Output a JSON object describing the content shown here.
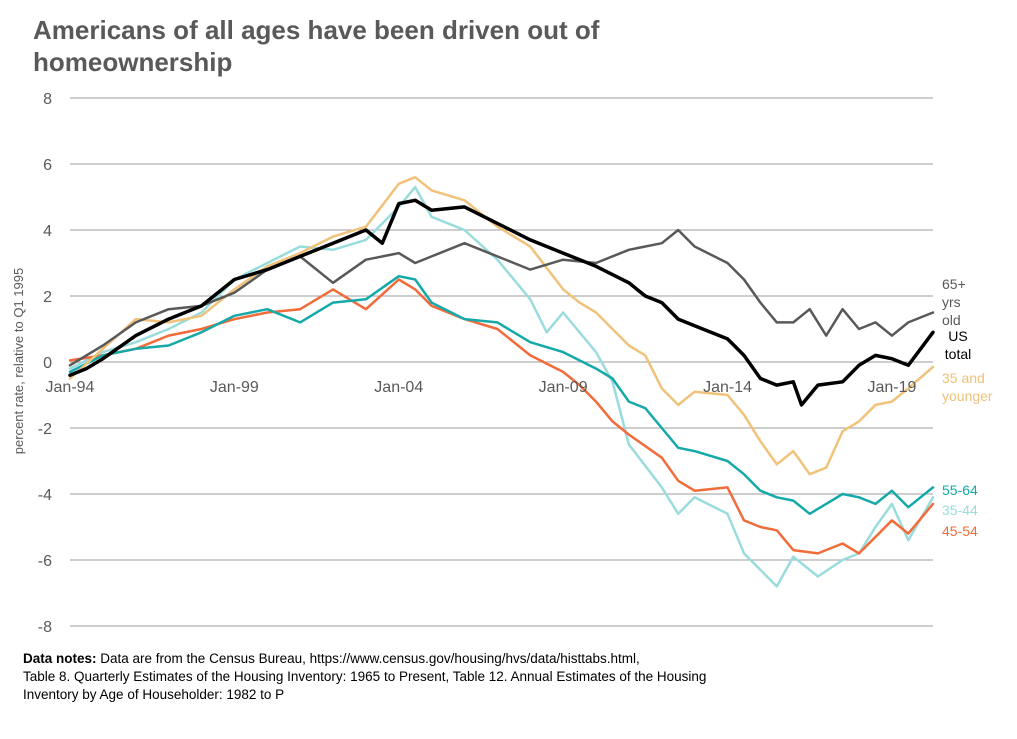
{
  "title": "Americans of all ages have been driven out of homeownership",
  "notes": {
    "label": "Data notes:",
    "line1": " Data are from the Census Bureau, https://www.census.gov/housing/hvs/data/histtabs.html,",
    "line2": "Table 8. Quarterly Estimates of the Housing Inventory: 1965 to Present, Table 12. Annual Estimates of the Housing",
    "line3": "Inventory by Age of Householder: 1982 to P"
  },
  "chart_data": {
    "type": "line",
    "ylabel": "percent rate, relative to Q1 1995",
    "xlabel": "",
    "ylim": [
      -8,
      8
    ],
    "yticks": [
      -8,
      -6,
      -4,
      -2,
      0,
      2,
      4,
      6,
      8
    ],
    "x_start": 1994.0,
    "x_end": 2020.25,
    "xtick_labels": [
      {
        "label": "Jan-94",
        "x": 1994
      },
      {
        "label": "Jan-99",
        "x": 1999
      },
      {
        "label": "Jan-04",
        "x": 2004
      },
      {
        "label": "Jan-09",
        "x": 2009
      },
      {
        "label": "Jan-14",
        "x": 2014
      },
      {
        "label": "Jan-19",
        "x": 2019
      }
    ],
    "grid": true,
    "legend": "labels at right end of lines",
    "series": [
      {
        "name": "35-44",
        "label_lines": [
          "35-44"
        ],
        "color": "#9adcde",
        "width": 2.5,
        "points": [
          [
            1994,
            -0.2
          ],
          [
            1995,
            0.3
          ],
          [
            1996,
            0.6
          ],
          [
            1997,
            1.0
          ],
          [
            1998,
            1.5
          ],
          [
            1999,
            2.5
          ],
          [
            2000,
            3.0
          ],
          [
            2001,
            3.5
          ],
          [
            2002,
            3.4
          ],
          [
            2003,
            3.7
          ],
          [
            2004,
            4.7
          ],
          [
            2004.5,
            5.3
          ],
          [
            2005,
            4.4
          ],
          [
            2006,
            4.0
          ],
          [
            2007,
            3.1
          ],
          [
            2008,
            1.9
          ],
          [
            2008.5,
            0.9
          ],
          [
            2009,
            1.5
          ],
          [
            2010,
            0.3
          ],
          [
            2010.5,
            -0.6
          ],
          [
            2011,
            -2.5
          ],
          [
            2012,
            -3.8
          ],
          [
            2012.5,
            -4.6
          ],
          [
            2013,
            -4.1
          ],
          [
            2014,
            -4.6
          ],
          [
            2014.5,
            -5.8
          ],
          [
            2015.5,
            -6.8
          ],
          [
            2016,
            -5.9
          ],
          [
            2016.75,
            -6.5
          ],
          [
            2017.5,
            -6.0
          ],
          [
            2018,
            -5.8
          ],
          [
            2018.5,
            -5.0
          ],
          [
            2019,
            -4.3
          ],
          [
            2019.5,
            -5.4
          ],
          [
            2020.25,
            -4.1
          ]
        ]
      },
      {
        "name": "45-54",
        "label_lines": [
          "45-54"
        ],
        "color": "#f26b3a",
        "width": 2.5,
        "points": [
          [
            1994,
            0.05
          ],
          [
            1995,
            0.2
          ],
          [
            1996,
            0.4
          ],
          [
            1997,
            0.8
          ],
          [
            1998,
            1.0
          ],
          [
            1999,
            1.3
          ],
          [
            2000,
            1.5
          ],
          [
            2001,
            1.6
          ],
          [
            2002,
            2.2
          ],
          [
            2003,
            1.6
          ],
          [
            2004,
            2.5
          ],
          [
            2004.5,
            2.2
          ],
          [
            2005,
            1.7
          ],
          [
            2006,
            1.3
          ],
          [
            2007,
            1.0
          ],
          [
            2008,
            0.2
          ],
          [
            2009,
            -0.3
          ],
          [
            2009.5,
            -0.7
          ],
          [
            2010,
            -1.2
          ],
          [
            2010.5,
            -1.8
          ],
          [
            2011,
            -2.2
          ],
          [
            2012,
            -2.9
          ],
          [
            2012.5,
            -3.6
          ],
          [
            2013,
            -3.9
          ],
          [
            2014,
            -3.8
          ],
          [
            2014.5,
            -4.8
          ],
          [
            2015,
            -5.0
          ],
          [
            2015.5,
            -5.1
          ],
          [
            2016,
            -5.7
          ],
          [
            2016.75,
            -5.8
          ],
          [
            2017.5,
            -5.5
          ],
          [
            2018,
            -5.8
          ],
          [
            2018.5,
            -5.3
          ],
          [
            2019,
            -4.8
          ],
          [
            2019.5,
            -5.2
          ],
          [
            2020.25,
            -4.3
          ]
        ]
      },
      {
        "name": "55-64",
        "label_lines": [
          "55-64"
        ],
        "color": "#16a9a9",
        "width": 2.5,
        "points": [
          [
            1994,
            -0.3
          ],
          [
            1995,
            0.2
          ],
          [
            1996,
            0.4
          ],
          [
            1997,
            0.5
          ],
          [
            1998,
            0.9
          ],
          [
            1999,
            1.4
          ],
          [
            2000,
            1.6
          ],
          [
            2001,
            1.2
          ],
          [
            2002,
            1.8
          ],
          [
            2003,
            1.9
          ],
          [
            2004,
            2.6
          ],
          [
            2004.5,
            2.5
          ],
          [
            2005,
            1.8
          ],
          [
            2006,
            1.3
          ],
          [
            2007,
            1.2
          ],
          [
            2008,
            0.6
          ],
          [
            2009,
            0.3
          ],
          [
            2010,
            -0.2
          ],
          [
            2010.5,
            -0.5
          ],
          [
            2011,
            -1.2
          ],
          [
            2011.5,
            -1.4
          ],
          [
            2012,
            -2.0
          ],
          [
            2012.5,
            -2.6
          ],
          [
            2013,
            -2.7
          ],
          [
            2014,
            -3.0
          ],
          [
            2014.5,
            -3.4
          ],
          [
            2015,
            -3.9
          ],
          [
            2015.5,
            -4.1
          ],
          [
            2016,
            -4.2
          ],
          [
            2016.5,
            -4.6
          ],
          [
            2017,
            -4.3
          ],
          [
            2017.5,
            -4.0
          ],
          [
            2018,
            -4.1
          ],
          [
            2018.5,
            -4.3
          ],
          [
            2019,
            -3.9
          ],
          [
            2019.5,
            -4.4
          ],
          [
            2020.25,
            -3.8
          ]
        ]
      },
      {
        "name": "35 and younger",
        "label_lines": [
          "35 and",
          "younger"
        ],
        "color": "#f0c27a",
        "width": 2.5,
        "points": [
          [
            1994,
            -0.5
          ],
          [
            1995,
            0.4
          ],
          [
            1996,
            1.3
          ],
          [
            1997,
            1.2
          ],
          [
            1998,
            1.4
          ],
          [
            1999,
            2.2
          ],
          [
            2000,
            2.9
          ],
          [
            2001,
            3.3
          ],
          [
            2002,
            3.8
          ],
          [
            2003,
            4.1
          ],
          [
            2004,
            5.4
          ],
          [
            2004.5,
            5.6
          ],
          [
            2005,
            5.2
          ],
          [
            2006,
            4.9
          ],
          [
            2007,
            4.1
          ],
          [
            2008,
            3.5
          ],
          [
            2009,
            2.2
          ],
          [
            2009.5,
            1.8
          ],
          [
            2010,
            1.5
          ],
          [
            2011,
            0.5
          ],
          [
            2011.5,
            0.2
          ],
          [
            2012,
            -0.8
          ],
          [
            2012.5,
            -1.3
          ],
          [
            2013,
            -0.9
          ],
          [
            2014,
            -1.0
          ],
          [
            2014.5,
            -1.6
          ],
          [
            2015,
            -2.4
          ],
          [
            2015.5,
            -3.1
          ],
          [
            2016,
            -2.7
          ],
          [
            2016.5,
            -3.4
          ],
          [
            2017,
            -3.2
          ],
          [
            2017.5,
            -2.1
          ],
          [
            2018,
            -1.8
          ],
          [
            2018.5,
            -1.3
          ],
          [
            2019,
            -1.2
          ],
          [
            2019.5,
            -0.8
          ],
          [
            2020.25,
            -0.15
          ]
        ]
      },
      {
        "name": "65+ yrs old",
        "label_lines": [
          "65+",
          "yrs",
          "old"
        ],
        "color": "#595959",
        "width": 2.5,
        "points": [
          [
            1994,
            -0.1
          ],
          [
            1995,
            0.5
          ],
          [
            1996,
            1.2
          ],
          [
            1997,
            1.6
          ],
          [
            1998,
            1.7
          ],
          [
            1999,
            2.1
          ],
          [
            2000,
            2.8
          ],
          [
            2001,
            3.2
          ],
          [
            2002,
            2.4
          ],
          [
            2003,
            3.1
          ],
          [
            2004,
            3.3
          ],
          [
            2004.5,
            3.0
          ],
          [
            2005,
            3.2
          ],
          [
            2006,
            3.6
          ],
          [
            2007,
            3.2
          ],
          [
            2008,
            2.8
          ],
          [
            2009,
            3.1
          ],
          [
            2010,
            3.0
          ],
          [
            2011,
            3.4
          ],
          [
            2012,
            3.6
          ],
          [
            2012.5,
            4.0
          ],
          [
            2013,
            3.5
          ],
          [
            2014,
            3.0
          ],
          [
            2014.5,
            2.5
          ],
          [
            2015,
            1.8
          ],
          [
            2015.5,
            1.2
          ],
          [
            2016,
            1.2
          ],
          [
            2016.5,
            1.6
          ],
          [
            2017,
            0.8
          ],
          [
            2017.5,
            1.6
          ],
          [
            2018,
            1.0
          ],
          [
            2018.5,
            1.2
          ],
          [
            2019,
            0.8
          ],
          [
            2019.5,
            1.2
          ],
          [
            2020.25,
            1.5
          ]
        ]
      },
      {
        "name": "US total",
        "label_lines": [
          "US",
          "total"
        ],
        "color": "#000000",
        "width": 3.5,
        "points": [
          [
            1994,
            -0.4
          ],
          [
            1994.5,
            -0.2
          ],
          [
            1995,
            0.1
          ],
          [
            1996,
            0.8
          ],
          [
            1997,
            1.3
          ],
          [
            1998,
            1.7
          ],
          [
            1999,
            2.5
          ],
          [
            2000,
            2.8
          ],
          [
            2001,
            3.2
          ],
          [
            2002,
            3.6
          ],
          [
            2003,
            4.0
          ],
          [
            2003.5,
            3.6
          ],
          [
            2004,
            4.8
          ],
          [
            2004.5,
            4.9
          ],
          [
            2005,
            4.6
          ],
          [
            2006,
            4.7
          ],
          [
            2007,
            4.2
          ],
          [
            2008,
            3.7
          ],
          [
            2009,
            3.3
          ],
          [
            2010,
            2.9
          ],
          [
            2011,
            2.4
          ],
          [
            2011.5,
            2.0
          ],
          [
            2012,
            1.8
          ],
          [
            2012.5,
            1.3
          ],
          [
            2013,
            1.1
          ],
          [
            2014,
            0.7
          ],
          [
            2014.5,
            0.2
          ],
          [
            2015,
            -0.5
          ],
          [
            2015.5,
            -0.7
          ],
          [
            2016,
            -0.6
          ],
          [
            2016.25,
            -1.3
          ],
          [
            2016.75,
            -0.7
          ],
          [
            2017.5,
            -0.6
          ],
          [
            2018,
            -0.1
          ],
          [
            2018.5,
            0.2
          ],
          [
            2019,
            0.1
          ],
          [
            2019.5,
            -0.1
          ],
          [
            2020.25,
            0.9
          ]
        ]
      }
    ]
  }
}
